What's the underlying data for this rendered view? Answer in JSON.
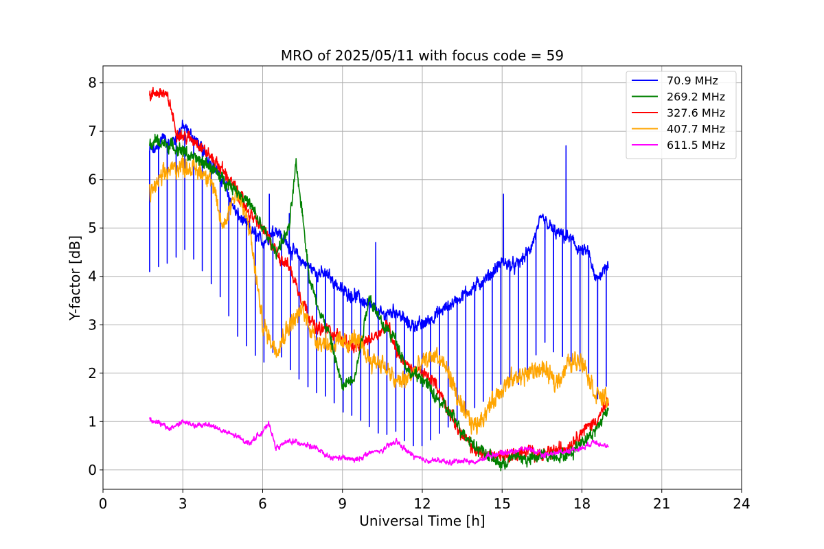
{
  "chart_data": {
    "type": "line",
    "title": "MRO of 2025/05/11 with focus code = 59",
    "xlabel": "Universal Time [h]",
    "ylabel": "Y-factor [dB]",
    "xlim": [
      0,
      24
    ],
    "ylim": [
      -0.4,
      8.35
    ],
    "xticks": [
      0,
      3,
      6,
      9,
      12,
      15,
      18,
      21,
      24
    ],
    "yticks": [
      0,
      1,
      2,
      3,
      4,
      5,
      6,
      7,
      8
    ],
    "xtick_labels": [
      "0",
      "3",
      "6",
      "9",
      "12",
      "15",
      "18",
      "21",
      "24"
    ],
    "ytick_labels": [
      "0",
      "1",
      "2",
      "3",
      "4",
      "5",
      "6",
      "7",
      "8"
    ],
    "grid": true,
    "legend_position": "top-right",
    "series": [
      {
        "name": " 70.9 MHz",
        "color": "#0000ff",
        "x": [
          1.75,
          2.0,
          2.25,
          2.5,
          3.0,
          3.5,
          4.0,
          4.5,
          5.0,
          5.5,
          6.0,
          6.5,
          7.0,
          7.5,
          8.0,
          8.5,
          9.0,
          9.5,
          10.0,
          10.5,
          11.0,
          11.5,
          12.0,
          12.5,
          13.0,
          13.5,
          14.0,
          14.5,
          15.0,
          15.5,
          16.0,
          16.5,
          17.0,
          17.5,
          18.0,
          18.25,
          18.5,
          19.0
        ],
        "y": [
          6.6,
          6.6,
          6.9,
          6.7,
          7.1,
          6.8,
          6.4,
          6.0,
          5.3,
          5.0,
          4.7,
          5.0,
          4.6,
          4.3,
          4.1,
          4.0,
          3.7,
          3.6,
          3.4,
          3.2,
          3.3,
          3.0,
          3.0,
          3.2,
          3.4,
          3.6,
          3.8,
          4.0,
          4.3,
          4.2,
          4.5,
          5.2,
          4.9,
          4.8,
          4.5,
          4.5,
          3.9,
          4.3
        ],
        "dip_spacing_h": 0.33,
        "dip_depth_db": 2.5,
        "spikes": [
          [
            6.25,
            5.7
          ],
          [
            7.0,
            5.3
          ],
          [
            10.25,
            4.7
          ],
          [
            15.05,
            5.7
          ],
          [
            17.4,
            6.7
          ]
        ]
      },
      {
        "name": "269.2 MHz",
        "color": "#008000",
        "x": [
          1.75,
          2.0,
          2.5,
          3.0,
          3.5,
          4.0,
          4.5,
          5.0,
          5.5,
          6.0,
          6.5,
          7.0,
          7.25,
          7.5,
          7.75,
          8.0,
          8.5,
          9.0,
          9.5,
          10.0,
          10.5,
          11.0,
          11.5,
          12.0,
          12.5,
          13.0,
          13.5,
          14.0,
          14.5,
          15.0,
          15.5,
          16.0,
          16.5,
          17.0,
          17.5,
          18.0,
          18.5,
          19.0
        ],
        "y": [
          6.7,
          6.8,
          6.7,
          6.6,
          6.4,
          6.3,
          6.0,
          5.8,
          5.5,
          5.0,
          4.5,
          5.0,
          6.3,
          5.3,
          4.0,
          3.5,
          2.8,
          1.7,
          2.0,
          3.6,
          3.0,
          2.7,
          2.0,
          1.9,
          1.5,
          1.2,
          0.8,
          0.5,
          0.3,
          0.1,
          0.3,
          0.2,
          0.3,
          0.3,
          0.3,
          0.6,
          0.8,
          1.3
        ]
      },
      {
        "name": "327.6 MHz",
        "color": "#ff0000",
        "x": [
          1.75,
          2.0,
          2.25,
          2.5,
          2.75,
          3.0,
          3.5,
          4.0,
          4.5,
          5.0,
          5.5,
          6.0,
          6.5,
          7.0,
          7.5,
          8.0,
          8.5,
          9.0,
          9.5,
          10.0,
          10.5,
          10.75,
          11.0,
          11.5,
          12.0,
          12.5,
          13.0,
          13.5,
          14.0,
          14.5,
          15.0,
          15.5,
          16.0,
          16.5,
          17.0,
          17.5,
          18.0,
          18.5,
          19.0
        ],
        "y": [
          7.7,
          7.8,
          7.8,
          7.6,
          7.0,
          6.9,
          6.8,
          6.5,
          6.2,
          5.8,
          5.3,
          5.0,
          4.5,
          4.2,
          3.5,
          2.9,
          2.9,
          2.7,
          2.5,
          2.7,
          2.9,
          3.0,
          2.5,
          2.1,
          2.0,
          1.8,
          1.2,
          0.7,
          0.4,
          0.3,
          0.3,
          0.3,
          0.4,
          0.3,
          0.4,
          0.5,
          0.8,
          1.0,
          1.4
        ]
      },
      {
        "name": "407.7 MHz",
        "color": "#ffa500",
        "x": [
          1.75,
          2.0,
          2.5,
          3.0,
          3.5,
          4.0,
          4.5,
          5.0,
          5.5,
          5.75,
          6.0,
          6.5,
          7.0,
          7.5,
          8.0,
          8.5,
          9.0,
          9.5,
          10.0,
          10.5,
          11.0,
          11.5,
          12.0,
          12.5,
          13.0,
          13.5,
          14.0,
          14.5,
          15.0,
          15.5,
          16.0,
          16.5,
          17.0,
          17.5,
          18.0,
          18.5,
          19.0
        ],
        "y": [
          5.7,
          5.9,
          6.2,
          6.3,
          6.2,
          6.1,
          5.0,
          5.8,
          5.0,
          4.0,
          3.0,
          2.5,
          3.0,
          3.3,
          2.7,
          2.6,
          2.6,
          2.7,
          2.3,
          2.2,
          1.8,
          1.9,
          2.2,
          2.4,
          2.0,
          1.2,
          0.9,
          1.3,
          1.7,
          1.9,
          2.0,
          2.1,
          1.8,
          2.2,
          2.3,
          1.6,
          1.4
        ]
      },
      {
        "name": "611.5 MHz",
        "color": "#ff00ff",
        "x": [
          1.75,
          2.0,
          2.5,
          3.0,
          3.5,
          4.0,
          4.5,
          5.0,
          5.5,
          6.0,
          6.25,
          6.5,
          7.0,
          7.5,
          8.0,
          8.5,
          9.0,
          9.5,
          10.0,
          10.5,
          11.0,
          11.5,
          12.0,
          12.5,
          13.0,
          13.5,
          14.0,
          14.5,
          15.0,
          15.5,
          16.0,
          16.5,
          17.0,
          17.5,
          18.0,
          18.5,
          19.0
        ],
        "y": [
          1.05,
          1.0,
          0.85,
          1.0,
          0.9,
          0.95,
          0.8,
          0.7,
          0.55,
          0.8,
          0.95,
          0.45,
          0.6,
          0.55,
          0.45,
          0.25,
          0.25,
          0.2,
          0.35,
          0.4,
          0.6,
          0.35,
          0.2,
          0.2,
          0.15,
          0.2,
          0.15,
          0.3,
          0.35,
          0.4,
          0.45,
          0.3,
          0.35,
          0.4,
          0.45,
          0.6,
          0.45
        ]
      }
    ]
  }
}
